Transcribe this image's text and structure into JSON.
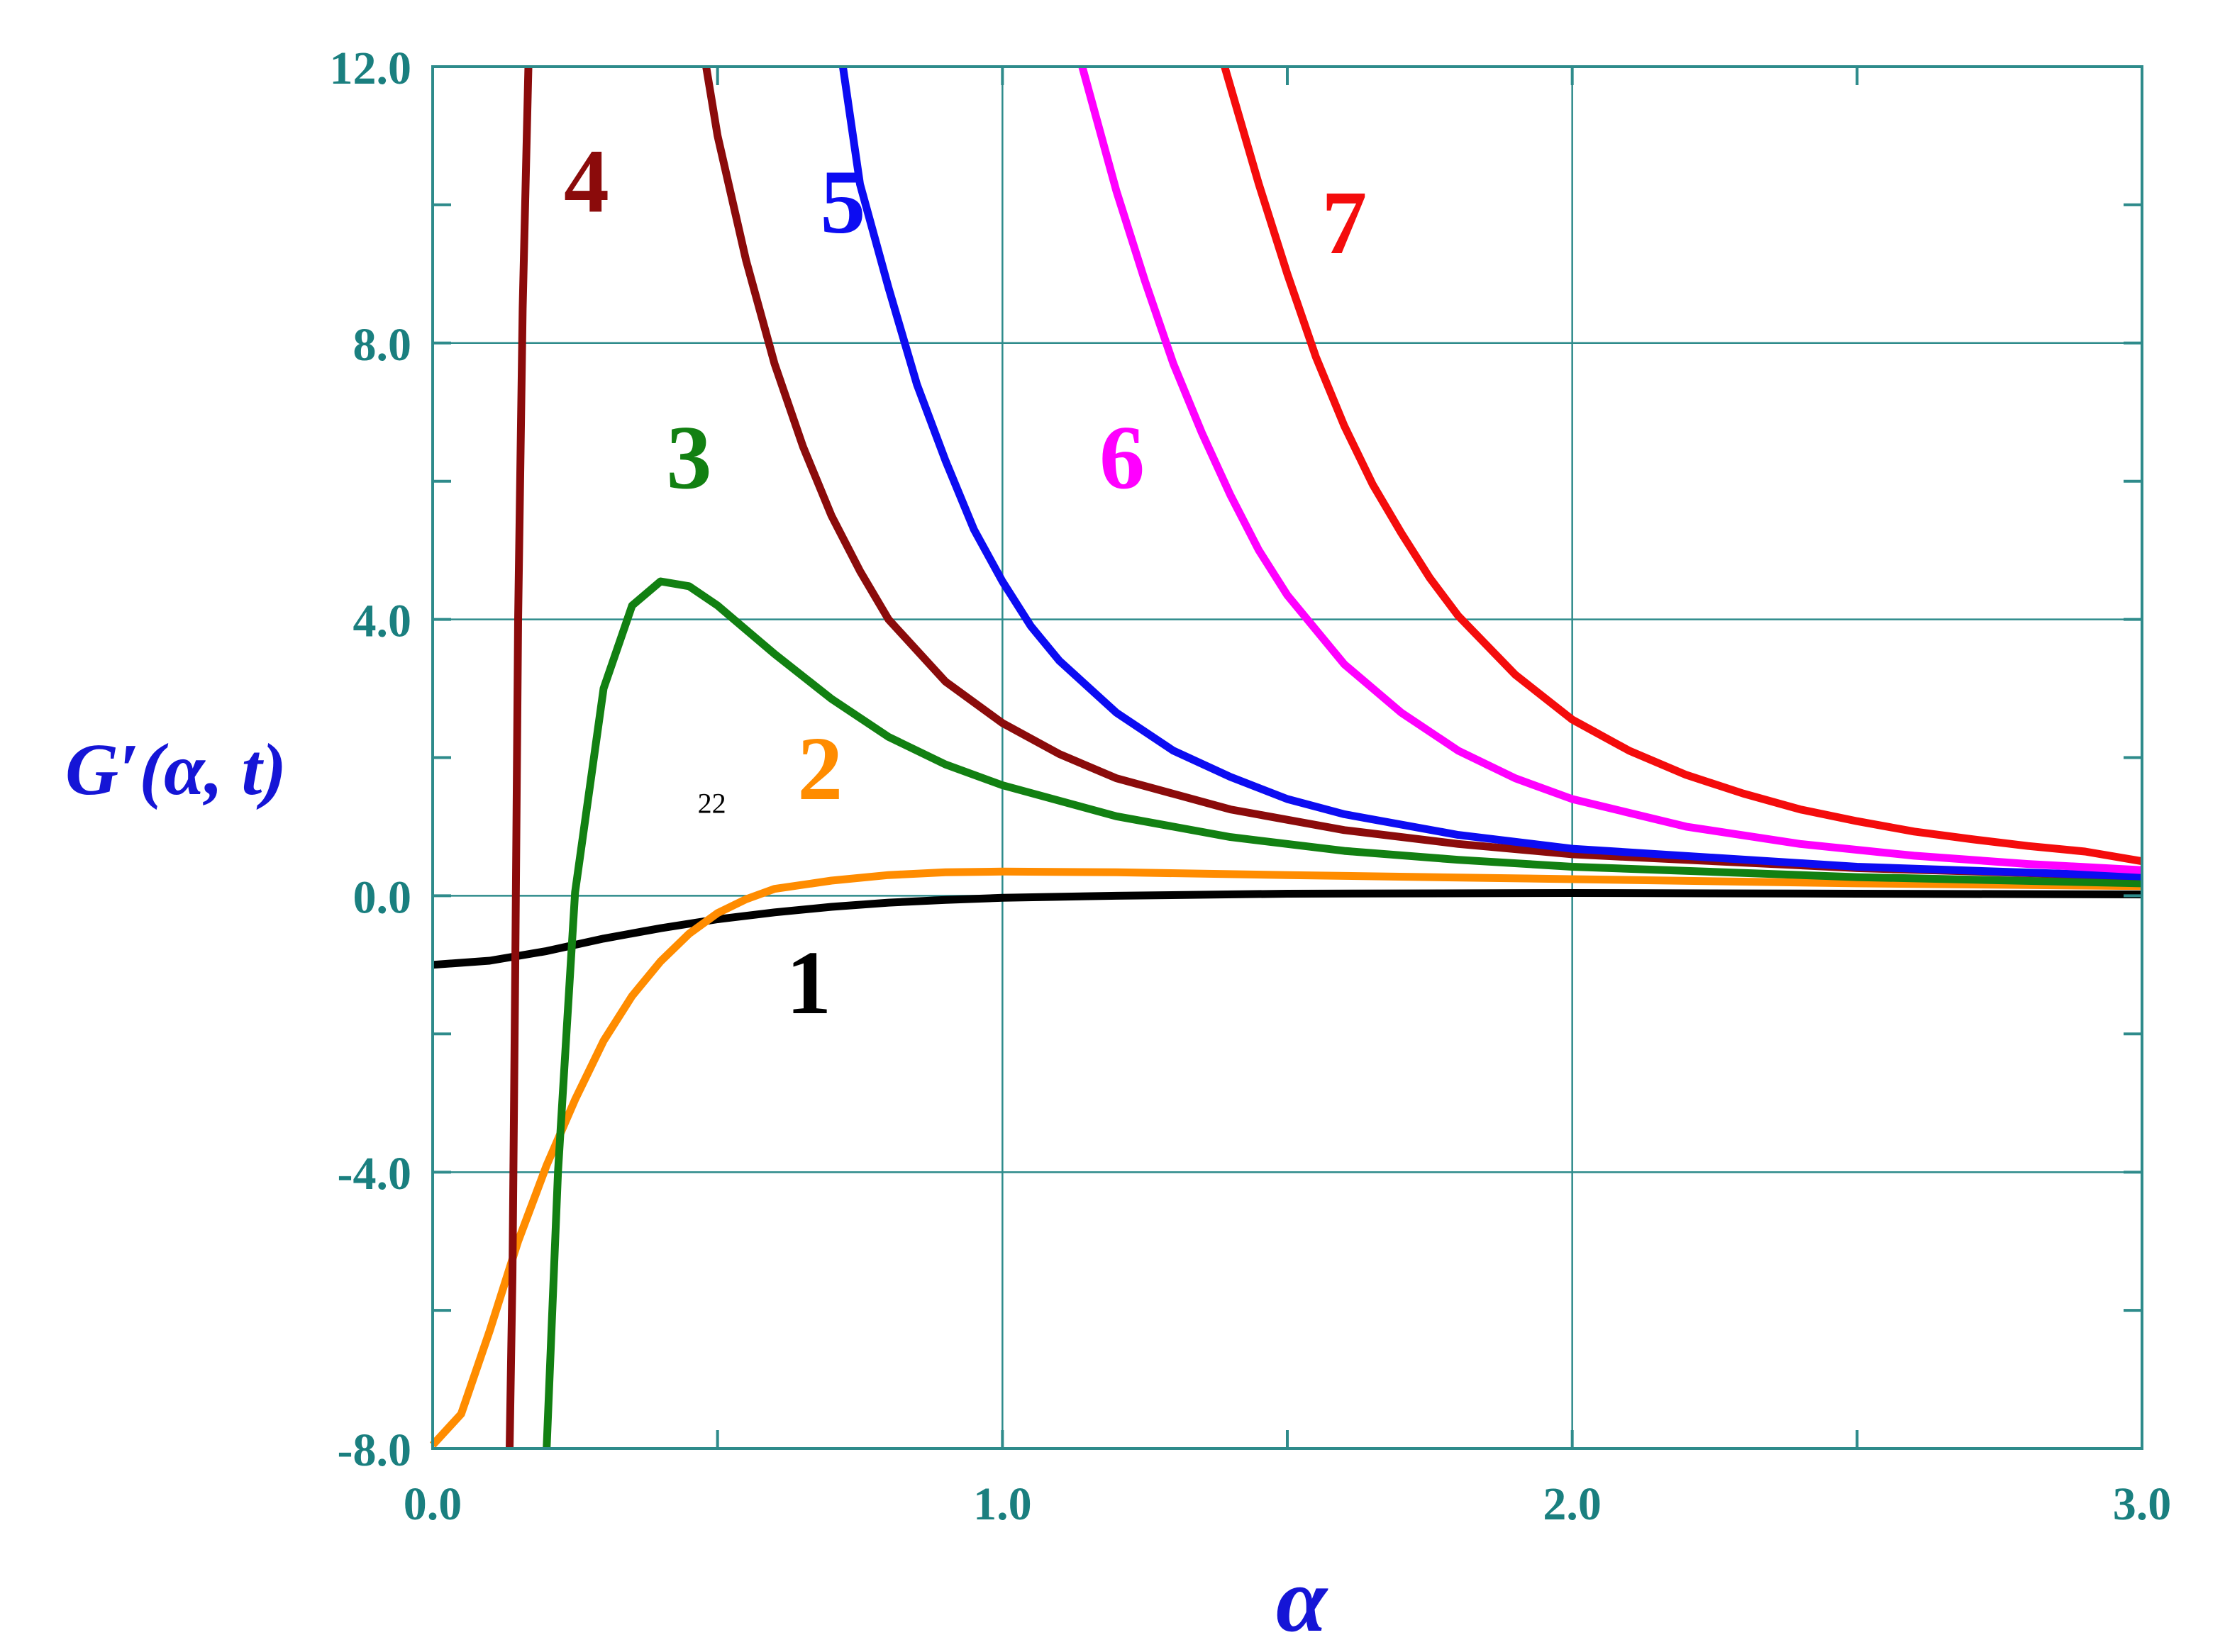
{
  "chart_data": {
    "type": "line",
    "title": "",
    "xlabel": "α",
    "ylabel": "G′(α, t)",
    "xlim": [
      0,
      3
    ],
    "ylim": [
      -8,
      12
    ],
    "x_ticks": [
      {
        "value": 0,
        "label": "0.0"
      },
      {
        "value": 1,
        "label": "1.0"
      },
      {
        "value": 2,
        "label": "2.0"
      },
      {
        "value": 3,
        "label": "3.0"
      }
    ],
    "y_ticks": [
      {
        "value": -8,
        "label": "-8.0"
      },
      {
        "value": -4,
        "label": "-4.0"
      },
      {
        "value": 0,
        "label": "0.0"
      },
      {
        "value": 4,
        "label": "4.0"
      },
      {
        "value": 8,
        "label": "8.0"
      },
      {
        "value": 12,
        "label": "12.0"
      }
    ],
    "x_minor_step": 0.5,
    "y_minor_step": 2,
    "grid": true,
    "colors": {
      "axis": "#2e8b8b",
      "tick_text": "#1a7f7f",
      "axis_title": "#1515d6"
    },
    "series": [
      {
        "label": "1",
        "color": "#000000",
        "label_pos": [
          0.66,
          -1.7
        ],
        "points": [
          [
            0,
            -1.0
          ],
          [
            0.1,
            -0.94
          ],
          [
            0.2,
            -0.8
          ],
          [
            0.3,
            -0.62
          ],
          [
            0.4,
            -0.47
          ],
          [
            0.5,
            -0.34
          ],
          [
            0.6,
            -0.24
          ],
          [
            0.7,
            -0.16
          ],
          [
            0.8,
            -0.1
          ],
          [
            0.9,
            -0.06
          ],
          [
            1.0,
            -0.03
          ],
          [
            1.2,
            0.0
          ],
          [
            1.5,
            0.03
          ],
          [
            2.0,
            0.04
          ],
          [
            2.5,
            0.03
          ],
          [
            3.0,
            0.02
          ]
        ]
      },
      {
        "label": "2",
        "color": "#ff8c00",
        "label_pos": [
          0.68,
          1.4
        ],
        "points": [
          [
            0,
            -7.95
          ],
          [
            0.05,
            -7.5
          ],
          [
            0.1,
            -6.3
          ],
          [
            0.15,
            -5.0
          ],
          [
            0.2,
            -3.9
          ],
          [
            0.25,
            -2.95
          ],
          [
            0.3,
            -2.1
          ],
          [
            0.35,
            -1.45
          ],
          [
            0.4,
            -0.95
          ],
          [
            0.45,
            -0.55
          ],
          [
            0.5,
            -0.25
          ],
          [
            0.55,
            -0.05
          ],
          [
            0.6,
            0.1
          ],
          [
            0.7,
            0.22
          ],
          [
            0.8,
            0.3
          ],
          [
            0.9,
            0.34
          ],
          [
            1.0,
            0.35
          ],
          [
            1.2,
            0.34
          ],
          [
            1.5,
            0.3
          ],
          [
            2.0,
            0.24
          ],
          [
            2.5,
            0.18
          ],
          [
            3.0,
            0.14
          ]
        ]
      },
      {
        "label": "3",
        "color": "#128012",
        "label_pos": [
          0.45,
          5.9
        ],
        "points": [
          [
            0.2,
            -8.0
          ],
          [
            0.22,
            -4.0
          ],
          [
            0.25,
            0.05
          ],
          [
            0.3,
            3.0
          ],
          [
            0.35,
            4.2
          ],
          [
            0.4,
            4.55
          ],
          [
            0.45,
            4.48
          ],
          [
            0.5,
            4.2
          ],
          [
            0.55,
            3.85
          ],
          [
            0.6,
            3.5
          ],
          [
            0.7,
            2.85
          ],
          [
            0.8,
            2.3
          ],
          [
            0.9,
            1.9
          ],
          [
            1.0,
            1.6
          ],
          [
            1.2,
            1.15
          ],
          [
            1.4,
            0.85
          ],
          [
            1.6,
            0.65
          ],
          [
            1.8,
            0.52
          ],
          [
            2.0,
            0.42
          ],
          [
            2.5,
            0.27
          ],
          [
            3.0,
            0.18
          ]
        ]
      },
      {
        "label": "4",
        "color": "#8b0b0b",
        "label_pos": [
          0.27,
          9.9
        ],
        "points": [
          [
            0.135,
            -8.0
          ],
          [
            0.14,
            -5.5
          ],
          [
            0.145,
            -1.0
          ],
          [
            0.15,
            4.0
          ],
          [
            0.158,
            8.5
          ],
          [
            0.168,
            12.0
          ]
        ]
      },
      {
        "label": "4",
        "color": "#8b0b0b",
        "show_label": false,
        "points": [
          [
            0.48,
            12.0
          ],
          [
            0.5,
            11.0
          ],
          [
            0.55,
            9.2
          ],
          [
            0.6,
            7.7
          ],
          [
            0.65,
            6.5
          ],
          [
            0.7,
            5.5
          ],
          [
            0.75,
            4.7
          ],
          [
            0.8,
            4.0
          ],
          [
            0.9,
            3.1
          ],
          [
            1.0,
            2.5
          ],
          [
            1.1,
            2.05
          ],
          [
            1.2,
            1.7
          ],
          [
            1.4,
            1.25
          ],
          [
            1.6,
            0.95
          ],
          [
            1.8,
            0.75
          ],
          [
            2.0,
            0.6
          ],
          [
            2.5,
            0.4
          ],
          [
            3.0,
            0.28
          ]
        ]
      },
      {
        "label": "5",
        "color": "#0c0cf2",
        "label_pos": [
          0.72,
          9.6
        ],
        "points": [
          [
            0.72,
            12.0
          ],
          [
            0.75,
            10.3
          ],
          [
            0.8,
            8.8
          ],
          [
            0.85,
            7.4
          ],
          [
            0.9,
            6.3
          ],
          [
            0.95,
            5.3
          ],
          [
            1.0,
            4.55
          ],
          [
            1.05,
            3.9
          ],
          [
            1.1,
            3.4
          ],
          [
            1.2,
            2.65
          ],
          [
            1.3,
            2.1
          ],
          [
            1.4,
            1.72
          ],
          [
            1.5,
            1.4
          ],
          [
            1.6,
            1.18
          ],
          [
            1.8,
            0.88
          ],
          [
            2.0,
            0.68
          ],
          [
            2.5,
            0.42
          ],
          [
            3.0,
            0.28
          ]
        ]
      },
      {
        "label": "6",
        "color": "#ff00ff",
        "label_pos": [
          1.21,
          5.9
        ],
        "points": [
          [
            1.14,
            12.0
          ],
          [
            1.2,
            10.2
          ],
          [
            1.25,
            8.9
          ],
          [
            1.3,
            7.7
          ],
          [
            1.35,
            6.7
          ],
          [
            1.4,
            5.8
          ],
          [
            1.45,
            5.0
          ],
          [
            1.5,
            4.35
          ],
          [
            1.6,
            3.35
          ],
          [
            1.7,
            2.65
          ],
          [
            1.8,
            2.1
          ],
          [
            1.9,
            1.7
          ],
          [
            2.0,
            1.4
          ],
          [
            2.2,
            1.0
          ],
          [
            2.4,
            0.75
          ],
          [
            2.6,
            0.58
          ],
          [
            2.8,
            0.46
          ],
          [
            3.0,
            0.37
          ]
        ]
      },
      {
        "label": "7",
        "color": "#f40c0c",
        "label_pos": [
          1.6,
          9.3
        ],
        "points": [
          [
            1.39,
            12.0
          ],
          [
            1.45,
            10.3
          ],
          [
            1.5,
            9.0
          ],
          [
            1.55,
            7.8
          ],
          [
            1.6,
            6.8
          ],
          [
            1.65,
            5.95
          ],
          [
            1.7,
            5.25
          ],
          [
            1.75,
            4.6
          ],
          [
            1.8,
            4.05
          ],
          [
            1.9,
            3.2
          ],
          [
            2.0,
            2.55
          ],
          [
            2.1,
            2.1
          ],
          [
            2.2,
            1.75
          ],
          [
            2.3,
            1.48
          ],
          [
            2.4,
            1.25
          ],
          [
            2.5,
            1.08
          ],
          [
            2.6,
            0.93
          ],
          [
            2.7,
            0.82
          ],
          [
            2.8,
            0.72
          ],
          [
            2.9,
            0.64
          ],
          [
            3.0,
            0.5
          ]
        ]
      }
    ],
    "extra_labels": [
      {
        "text": "22",
        "pos": [
          0.49,
          1.2
        ]
      }
    ]
  }
}
